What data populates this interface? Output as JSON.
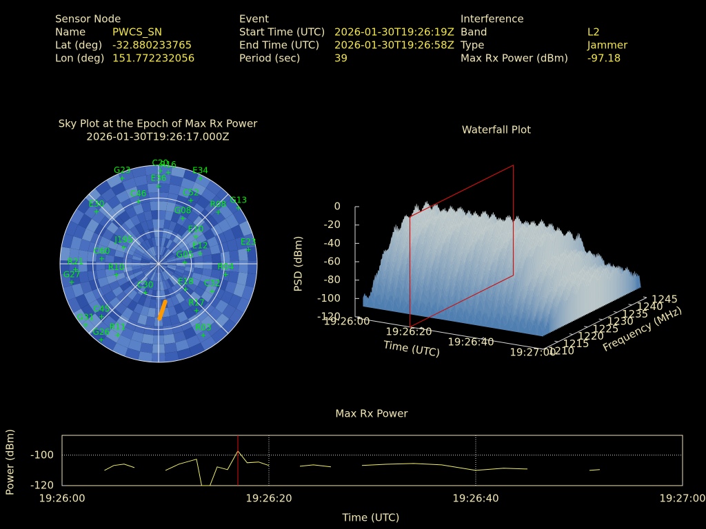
{
  "header": {
    "sensor": {
      "title": "Sensor Node",
      "rows": [
        [
          "Name",
          "PWCS_SN"
        ],
        [
          "Lat (deg)",
          "-32.880233765"
        ],
        [
          "Lon (deg)",
          "151.772232056"
        ]
      ]
    },
    "event": {
      "title": "Event",
      "rows": [
        [
          "Start Time (UTC)",
          "2026-01-30T19:26:19Z"
        ],
        [
          "End Time (UTC)",
          "2026-01-30T19:26:58Z"
        ],
        [
          "Period (sec)",
          "39"
        ]
      ]
    },
    "interference": {
      "title": "Interference",
      "rows": [
        [
          "Band",
          "L2"
        ],
        [
          "Type",
          "Jammer"
        ],
        [
          "Max Rx Power (dBm)",
          "-97.18"
        ]
      ]
    }
  },
  "chart_data": [
    {
      "type": "polar",
      "title": "Sky Plot at the Epoch of Max Rx Power",
      "subtitle": "2026-01-30T19:26:17.000Z",
      "elticks": [
        0,
        30,
        60
      ],
      "color": "#00ee00",
      "satellites": {
        "names": [
          "G23",
          "C20",
          "R16",
          "E34",
          "E36",
          "C52",
          "C46",
          "R08",
          "G13",
          "E30",
          "G08",
          "E10",
          "E23",
          "E12",
          "C60",
          "J195",
          "G05",
          "R21",
          "R04",
          "R10",
          "G27",
          "C30",
          "E18",
          "C32",
          "R17",
          "C45",
          "G31",
          "R11",
          "R03",
          "G26"
        ],
        "az": [
          337,
          1,
          6,
          26,
          0,
          27,
          342,
          49,
          55,
          310,
          28,
          54,
          81,
          76,
          275,
          295,
          87,
          266,
          99,
          255,
          258,
          205,
          133,
          117,
          141,
          227,
          230,
          210,
          148,
          217
        ],
        "el": [
          5,
          5,
          6,
          3,
          19,
          25,
          30,
          18,
          1,
          16,
          43,
          48,
          7,
          51,
          38,
          55,
          66,
          14,
          28,
          50,
          9,
          61,
          56,
          35,
          35,
          19,
          3,
          15,
          13,
          3
        ]
      },
      "track": {
        "az": [
          170,
          175,
          179
        ],
        "el": [
          55,
          48,
          40
        ],
        "color": "#ff9900"
      }
    },
    {
      "type": "surface",
      "title": "Waterfall Plot",
      "xlabel": "Time (UTC)",
      "ylabel": "Frequency (MHz)",
      "zlabel": "PSD (dBm)",
      "xlim": [
        0,
        60
      ],
      "xticks": [
        {
          "value": 0,
          "label": "19:26:00"
        },
        {
          "value": 20,
          "label": "19:26:20"
        },
        {
          "value": 40,
          "label": "19:26:40"
        },
        {
          "value": 60,
          "label": "19:27:00"
        }
      ],
      "ylim": [
        1210,
        1245
      ],
      "yticks": [
        1210,
        1215,
        1220,
        1225,
        1230,
        1235,
        1240,
        1245
      ],
      "zlim": [
        -120,
        0
      ],
      "zticks": [
        0,
        -20,
        -40,
        -60,
        -80,
        -100,
        -120
      ],
      "marker_x": 17,
      "marker_color": "#cc1111"
    },
    {
      "type": "line",
      "title": "Max Rx Power",
      "xlabel": "Time (UTC)",
      "ylabel": "Power (dBm)",
      "x": [
        4.1,
        5,
        6,
        7,
        8,
        10,
        11.3,
        13,
        13.5,
        14.3,
        15,
        16,
        17,
        17.9,
        19,
        20,
        21,
        23,
        24.3,
        26,
        27,
        29,
        31.3,
        34,
        36.7,
        40,
        42.7,
        45,
        46,
        51,
        52
      ],
      "values": [
        -110,
        -106.8,
        -105.9,
        -108.2,
        null,
        -110,
        -105.9,
        -102.7,
        -120,
        -120,
        -107.7,
        -109.5,
        -97.2,
        -105,
        -104.5,
        -106.8,
        null,
        -107.3,
        -106.4,
        -107.7,
        null,
        -106.8,
        -106,
        -105.5,
        -106.4,
        -110,
        -108.6,
        -109.1,
        null,
        -110,
        -109.5
      ],
      "color": "#f2f26a",
      "grid": true,
      "xlim": [
        0,
        60
      ],
      "xticks": [
        {
          "value": 0,
          "label": "19:26:00"
        },
        {
          "value": 20,
          "label": "19:26:20"
        },
        {
          "value": 40,
          "label": "19:26:40"
        },
        {
          "value": 60,
          "label": "19:27:00"
        }
      ],
      "ylim": [
        -120,
        -87
      ],
      "yticks": [
        -100,
        -120
      ],
      "marker_x": 17,
      "marker_color": "#dd1111"
    }
  ]
}
